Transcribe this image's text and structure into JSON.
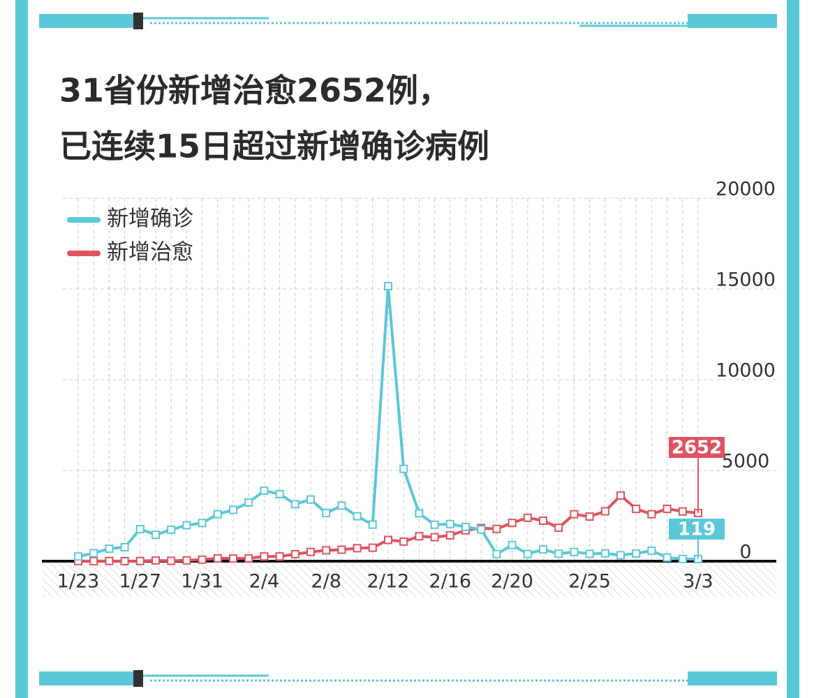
{
  "chart_data": {
    "type": "line",
    "title": [
      "31省份新增治愈2652例，",
      "已连续15日超过新增确诊病例"
    ],
    "categories": [
      "1/23",
      null,
      null,
      null,
      "1/27",
      null,
      null,
      null,
      "1/31",
      null,
      null,
      null,
      "2/4",
      null,
      null,
      null,
      "2/8",
      null,
      null,
      null,
      "2/12",
      null,
      null,
      null,
      "2/16",
      null,
      null,
      null,
      "2/20",
      null,
      null,
      null,
      null,
      "2/25",
      null,
      null,
      null,
      null,
      null,
      null,
      "3/3"
    ],
    "series": [
      {
        "name": "新增确诊",
        "color": "#5bc8d8",
        "values": [
          259,
          444,
          688,
          769,
          1771,
          1459,
          1737,
          1982,
          2102,
          2590,
          2829,
          3235,
          3887,
          3694,
          3143,
          3399,
          2656,
          3062,
          2478,
          2015,
          15152,
          5090,
          2641,
          2009,
          2048,
          1886,
          1749,
          394,
          889,
          397,
          648,
          409,
          508,
          406,
          433,
          327,
          427,
          573,
          202,
          125,
          119
        ]
      },
      {
        "name": "新增治愈",
        "color": "#e0525f",
        "values": [
          6,
          3,
          11,
          2,
          9,
          43,
          21,
          47,
          85,
          157,
          147,
          157,
          262,
          261,
          387,
          510,
          600,
          632,
          716,
          744,
          1171,
          1081,
          1373,
          1323,
          1425,
          1701,
          1824,
          1779,
          2109,
          2393,
          2230,
          1846,
          2589,
          2460,
          2750,
          3622,
          2885,
          2589,
          2887,
          2742,
          2652
        ]
      }
    ],
    "ylim": [
      0,
      20000
    ],
    "yticks": [
      0,
      5000,
      10000,
      15000,
      20000
    ],
    "grid": true,
    "legend": "top-left"
  }
}
